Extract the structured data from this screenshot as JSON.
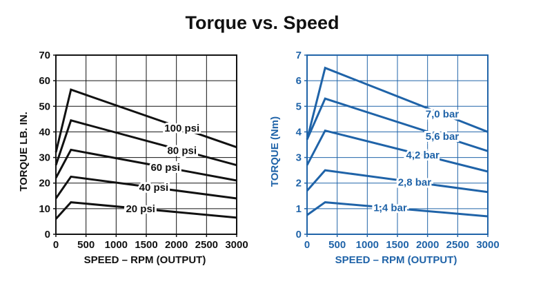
{
  "title": "Torque vs. Speed",
  "chart_data": [
    {
      "type": "line",
      "color": "#111111",
      "xlabel": "SPEED – RPM (OUTPUT)",
      "ylabel": "TORQUE LB. IN.",
      "xlim": [
        0,
        3000
      ],
      "ylim": [
        0,
        70
      ],
      "xticks": [
        "0",
        "500",
        "1000",
        "1500",
        "2000",
        "2500",
        "3000"
      ],
      "yticks": [
        "0",
        "10",
        "20",
        "30",
        "40",
        "50",
        "60",
        "70"
      ],
      "grid": true,
      "series": [
        {
          "name": "100 psi",
          "x": [
            0,
            250,
            3000
          ],
          "y": [
            32,
            56.5,
            34
          ]
        },
        {
          "name": "80 psi",
          "x": [
            0,
            250,
            3000
          ],
          "y": [
            27,
            44.5,
            27
          ]
        },
        {
          "name": "60 psi",
          "x": [
            0,
            250,
            3000
          ],
          "y": [
            22,
            33,
            21
          ]
        },
        {
          "name": "40 psi",
          "x": [
            0,
            250,
            3000
          ],
          "y": [
            14,
            22.5,
            14
          ]
        },
        {
          "name": "20 psi",
          "x": [
            0,
            250,
            3000
          ],
          "y": [
            6,
            12.5,
            6.5
          ]
        }
      ]
    },
    {
      "type": "line",
      "color": "#1f63a8",
      "xlabel": "SPEED – RPM (OUTPUT)",
      "ylabel": "TORQUE (Nm)",
      "xlim": [
        0,
        3000
      ],
      "ylim": [
        0,
        7
      ],
      "xticks": [
        "0",
        "500",
        "1000",
        "1500",
        "2000",
        "2500",
        "3000"
      ],
      "yticks": [
        "0",
        "1",
        "2",
        "3",
        "4",
        "5",
        "6",
        "7"
      ],
      "grid": true,
      "series": [
        {
          "name": "7,0 bar",
          "x": [
            0,
            300,
            3000
          ],
          "y": [
            3.7,
            6.5,
            4.0
          ]
        },
        {
          "name": "5,6 bar",
          "x": [
            0,
            300,
            3000
          ],
          "y": [
            3.7,
            5.3,
            3.25
          ]
        },
        {
          "name": "4,2 bar",
          "x": [
            0,
            300,
            3000
          ],
          "y": [
            2.7,
            4.05,
            2.45
          ]
        },
        {
          "name": "2,8 bar",
          "x": [
            0,
            300,
            3000
          ],
          "y": [
            1.7,
            2.5,
            1.65
          ]
        },
        {
          "name": "1,4 bar",
          "x": [
            0,
            300,
            3000
          ],
          "y": [
            0.75,
            1.25,
            0.7
          ]
        }
      ]
    }
  ]
}
